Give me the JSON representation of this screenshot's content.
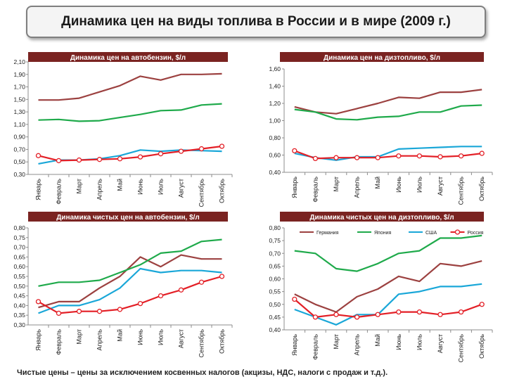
{
  "title": "Динамика цен на виды топлива в России и в мире (2009 г.)",
  "footnote": "Чистые цены – цены за исключением косвенных налогов (акцизы, НДС, налоги с продаж и т.д.).",
  "colors": {
    "Германия": "#9c4140",
    "Япония": "#1faa4b",
    "США": "#1aa7d8",
    "Россия": "#e31f26",
    "banner": "#7a2321"
  },
  "months": [
    "Январь",
    "Февраль",
    "Март",
    "Апрель",
    "Май",
    "Июнь",
    "Июль",
    "Август",
    "Сентябрь",
    "Октябрь"
  ],
  "chart_data": [
    {
      "type": "line",
      "title": "Динамика цен на автобензин, $/л",
      "categories": [
        "Январь",
        "Февраль",
        "Март",
        "Апрель",
        "Май",
        "Июнь",
        "Июль",
        "Август",
        "Сентябрь",
        "Октябрь"
      ],
      "ylim": [
        0.3,
        2.1
      ],
      "yticks": [
        "0,30",
        "0,50",
        "0,70",
        "0,90",
        "1,10",
        "1,30",
        "1,50",
        "1,70",
        "1,90",
        "2,10"
      ],
      "legend": false,
      "series": [
        {
          "name": "Германия",
          "values": [
            1.49,
            1.49,
            1.52,
            1.62,
            1.72,
            1.87,
            1.81,
            1.9,
            1.9,
            1.91
          ]
        },
        {
          "name": "Япония",
          "values": [
            1.17,
            1.18,
            1.15,
            1.16,
            1.21,
            1.26,
            1.32,
            1.33,
            1.41,
            1.43
          ]
        },
        {
          "name": "США",
          "values": [
            0.47,
            0.53,
            0.53,
            0.55,
            0.6,
            0.69,
            0.67,
            0.69,
            0.68,
            0.67
          ]
        },
        {
          "name": "Россия",
          "values": [
            0.6,
            0.52,
            0.53,
            0.54,
            0.55,
            0.58,
            0.63,
            0.67,
            0.71,
            0.75
          ]
        }
      ]
    },
    {
      "type": "line",
      "title": "Динамика цен на дизтопливо, $/л",
      "categories": [
        "Январь",
        "Февраль",
        "Март",
        "Апрель",
        "Май",
        "Июнь",
        "Июль",
        "Август",
        "Сентябрь",
        "Октябрь"
      ],
      "ylim": [
        0.4,
        1.6
      ],
      "yticks": [
        "0,40",
        "0,60",
        "0,80",
        "1,00",
        "1,20",
        "1,40",
        "1,60"
      ],
      "legend": false,
      "series": [
        {
          "name": "Германия",
          "values": [
            1.16,
            1.1,
            1.08,
            1.14,
            1.2,
            1.27,
            1.26,
            1.33,
            1.33,
            1.36
          ]
        },
        {
          "name": "Япония",
          "values": [
            1.13,
            1.1,
            1.02,
            1.01,
            1.04,
            1.05,
            1.1,
            1.1,
            1.17,
            1.18
          ]
        },
        {
          "name": "США",
          "values": [
            0.62,
            0.57,
            0.54,
            0.58,
            0.58,
            0.67,
            0.68,
            0.69,
            0.7,
            0.7
          ]
        },
        {
          "name": "Россия",
          "values": [
            0.65,
            0.56,
            0.57,
            0.57,
            0.57,
            0.59,
            0.59,
            0.58,
            0.59,
            0.62
          ]
        }
      ]
    },
    {
      "type": "line",
      "title": "Динамика чистых цен на автобензин, $/л",
      "categories": [
        "Январь",
        "Февраль",
        "Март",
        "Апрель",
        "Май",
        "Июнь",
        "Июль",
        "Август",
        "Сентябрь",
        "Октябрь"
      ],
      "ylim": [
        0.3,
        0.8
      ],
      "yticks": [
        "0,30",
        "0,35",
        "0,40",
        "0,45",
        "0,50",
        "0,55",
        "0,60",
        "0,65",
        "0,70",
        "0,75",
        "0,80"
      ],
      "legend": false,
      "series": [
        {
          "name": "Германия",
          "values": [
            0.39,
            0.42,
            0.42,
            0.49,
            0.55,
            0.65,
            0.6,
            0.66,
            0.64,
            0.64
          ]
        },
        {
          "name": "Япония",
          "values": [
            0.5,
            0.52,
            0.52,
            0.53,
            0.57,
            0.61,
            0.67,
            0.68,
            0.73,
            0.74
          ]
        },
        {
          "name": "США",
          "values": [
            0.36,
            0.4,
            0.4,
            0.43,
            0.49,
            0.59,
            0.57,
            0.58,
            0.58,
            0.57
          ]
        },
        {
          "name": "Россия",
          "values": [
            0.42,
            0.36,
            0.37,
            0.37,
            0.38,
            0.41,
            0.45,
            0.48,
            0.52,
            0.55
          ]
        }
      ]
    },
    {
      "type": "line",
      "title": "Динамика чистых цен на дизтопливо, $/л",
      "categories": [
        "Январь",
        "Февраль",
        "Март",
        "Апрель",
        "Май",
        "Июнь",
        "Июль",
        "Август",
        "Сентябрь",
        "Октябрь"
      ],
      "ylim": [
        0.4,
        0.8
      ],
      "yticks": [
        "0,40",
        "0,45",
        "0,50",
        "0,55",
        "0,60",
        "0,65",
        "0,70",
        "0,75",
        "0,80"
      ],
      "legend": true,
      "legend_position": "top",
      "series": [
        {
          "name": "Германия",
          "values": [
            0.54,
            0.5,
            0.47,
            0.53,
            0.56,
            0.61,
            0.59,
            0.66,
            0.65,
            0.67
          ]
        },
        {
          "name": "Япония",
          "values": [
            0.71,
            0.7,
            0.64,
            0.63,
            0.66,
            0.7,
            0.71,
            0.76,
            0.76,
            0.77
          ]
        },
        {
          "name": "США",
          "values": [
            0.48,
            0.45,
            0.42,
            0.46,
            0.46,
            0.54,
            0.55,
            0.57,
            0.57,
            0.58
          ]
        },
        {
          "name": "Россия",
          "values": [
            0.52,
            0.45,
            0.46,
            0.45,
            0.46,
            0.47,
            0.47,
            0.46,
            0.47,
            0.5
          ]
        }
      ]
    }
  ]
}
